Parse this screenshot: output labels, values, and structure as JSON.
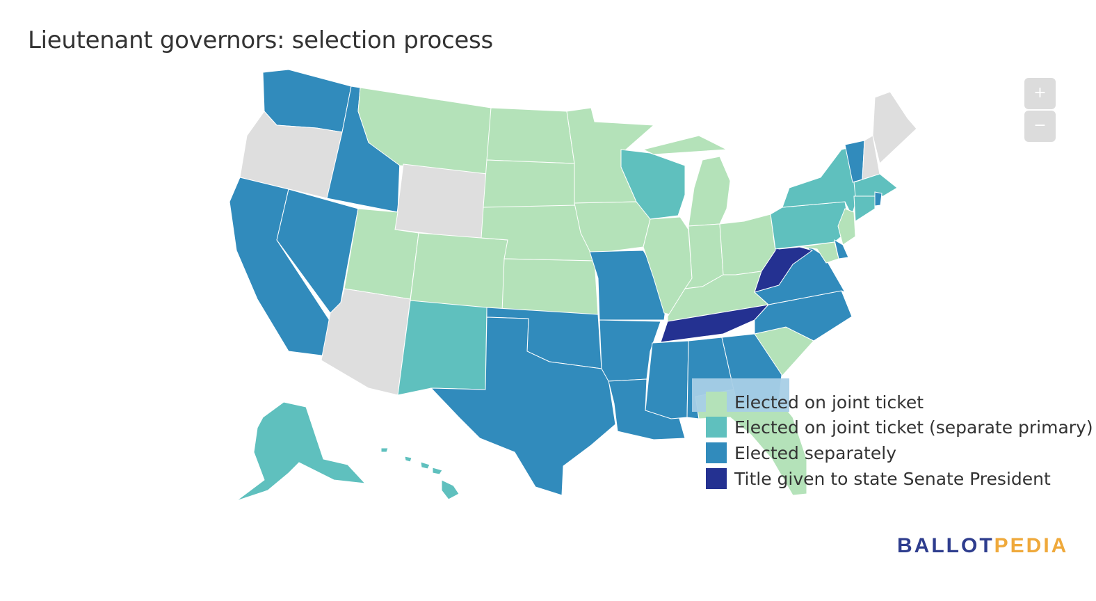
{
  "title": "Lieutenant governors: selection process",
  "zoom": {
    "in_label": "+",
    "out_label": "−"
  },
  "colors": {
    "joint": "#b4e2b9",
    "joint_primary": "#5fc0be",
    "separate": "#318bbc",
    "senate": "#243191",
    "none": "#dedede",
    "logo_ballot": "#2e3d8e",
    "logo_pedia": "#efa93b"
  },
  "legend": [
    {
      "label": "Elected on joint ticket",
      "color": "#b4e2b9"
    },
    {
      "label": "Elected on joint ticket (separate primary)",
      "color": "#5fc0be"
    },
    {
      "label": "Elected separately",
      "color": "#318bbc"
    },
    {
      "label": "Title given to state Senate President",
      "color": "#243191"
    }
  ],
  "logo": {
    "part1": "BALLOT",
    "part2": "PEDIA"
  },
  "states": {
    "WA": "separate",
    "OR": "none",
    "CA": "separate",
    "NV": "separate",
    "ID": "separate",
    "MT": "joint",
    "WY": "none",
    "UT": "joint",
    "AZ": "none",
    "CO": "joint",
    "NM": "joint_primary",
    "ND": "joint",
    "SD": "joint",
    "NE": "joint",
    "KS": "joint",
    "OK": "separate",
    "TX": "separate",
    "MN": "joint",
    "IA": "joint",
    "MO": "separate",
    "AR": "separate",
    "LA": "separate",
    "WI": "joint_primary",
    "IL": "joint",
    "MI": "joint",
    "IN": "joint",
    "OH": "joint",
    "KY": "joint",
    "TN": "senate",
    "MS": "separate",
    "AL": "separate",
    "GA": "separate",
    "FL": "joint",
    "SC": "joint",
    "NC": "separate",
    "VA": "separate",
    "WV": "senate",
    "PA": "joint_primary",
    "NY": "joint_primary",
    "VT": "separate",
    "NH": "none",
    "ME": "none",
    "MA": "joint_primary",
    "CT": "joint_primary",
    "RI": "separate",
    "NJ": "joint",
    "DE": "separate",
    "MD": "joint",
    "AK": "joint_primary",
    "HI": "joint_primary"
  }
}
